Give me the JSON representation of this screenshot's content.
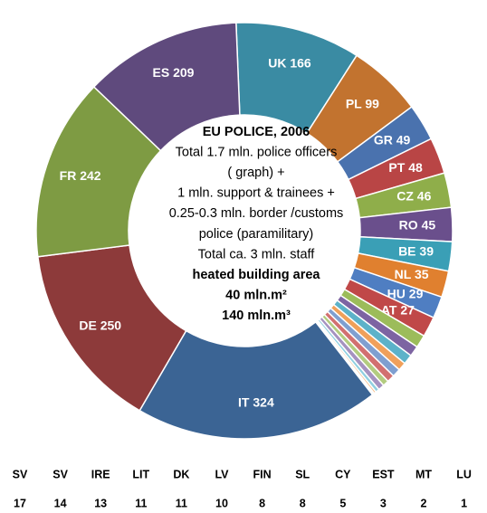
{
  "chart_data": {
    "type": "donut",
    "categories": [
      "UK",
      "PL",
      "GR",
      "PT",
      "CZ",
      "RO",
      "BE",
      "NL",
      "HU",
      "AT",
      "SV",
      "SV",
      "IRE",
      "LIT",
      "DK",
      "LV",
      "FIN",
      "SL",
      "CY",
      "EST",
      "MT",
      "LU",
      "IT",
      "DE",
      "FR",
      "ES"
    ],
    "values": [
      166,
      99,
      49,
      48,
      46,
      45,
      39,
      35,
      29,
      27,
      17,
      14,
      13,
      11,
      11,
      10,
      8,
      8,
      5,
      3,
      2,
      1,
      324,
      250,
      242,
      209
    ],
    "colors": [
      "#3a8ba3",
      "#c2732f",
      "#4a72ae",
      "#b94545",
      "#8fae4a",
      "#6a4f8c",
      "#3a9fb6",
      "#e0802f",
      "#4f7ec2",
      "#c04848",
      "#9cbc5a",
      "#7d64a2",
      "#5cb2c9",
      "#f0a05a",
      "#7f9fd0",
      "#d27070",
      "#b3cc80",
      "#a592c0",
      "#8fcfe0",
      "#f5c090",
      "#c8d4ea",
      "#e6a8a8",
      "#3b6494",
      "#8d3a3a",
      "#7e9b43",
      "#5f4a7d"
    ],
    "center_text": [
      {
        "text": "EU POLICE, 2006",
        "bold": true
      },
      {
        "text": "Total 1.7 mln. police officers",
        "bold": false
      },
      {
        "text": "( graph) +",
        "bold": false
      },
      {
        "text": "1 mln. support & trainees +",
        "bold": false
      },
      {
        "text": "0.25-0.3 mln. border /customs",
        "bold": false
      },
      {
        "text": "police (paramilitary)",
        "bold": false
      },
      {
        "text": "Total  ca. 3 mln. staff",
        "bold": false
      },
      {
        "text": "heated building area",
        "bold": true
      },
      {
        "text": "40 mln.m²",
        "bold": true
      },
      {
        "text": "140 mln.m³",
        "bold": true
      }
    ]
  }
}
